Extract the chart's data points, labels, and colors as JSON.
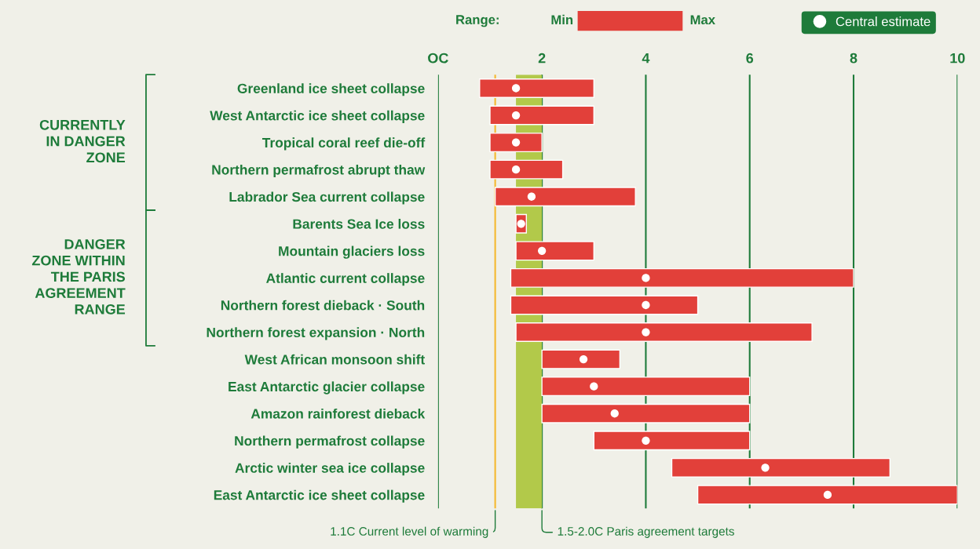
{
  "chart_data": {
    "type": "bar",
    "orientation": "horizontal",
    "categories": [
      "Greenland ice sheet collapse",
      "West Antarctic ice sheet collapse",
      "Tropical coral reef die-off",
      "Northern permafrost abrupt thaw",
      "Labrador Sea current collapse",
      "Barents Sea Ice loss",
      "Mountain glaciers loss",
      "Atlantic current collapse",
      "Northern forest dieback · South",
      "Northern forest expansion · North",
      "West African monsoon shift",
      "East Antarctic glacier collapse",
      "Amazon rainforest dieback",
      "Northern permafrost collapse",
      "Arctic winter sea ice collapse",
      "East Antarctic ice sheet collapse"
    ],
    "series": [
      {
        "color": "#e2403a",
        "base": [
          0.8,
          1.0,
          1.0,
          1.0,
          1.1,
          1.5,
          1.5,
          1.4,
          1.4,
          1.5,
          2.0,
          2.0,
          2.0,
          3.0,
          4.5,
          5.0
        ],
        "values": [
          2.2,
          2.0,
          1.0,
          1.4,
          2.7,
          0.2,
          1.5,
          6.6,
          3.6,
          5.7,
          1.5,
          4.0,
          4.0,
          3.0,
          4.2,
          5.0
        ]
      },
      {
        "type": "scatter",
        "name": "Central estimate",
        "color": "#ffffff",
        "marker": "circle",
        "values": [
          1.5,
          1.5,
          1.5,
          1.5,
          1.8,
          1.6,
          2.0,
          4.0,
          4.0,
          4.0,
          2.8,
          3.0,
          3.4,
          4.0,
          6.3,
          7.5
        ]
      }
    ],
    "xlim": [
      0,
      10
    ],
    "xticks": [
      {
        "value": 0,
        "label": "OC"
      },
      2,
      4,
      6,
      8,
      10
    ],
    "grid": "x",
    "legend": "top right",
    "ref_lines": [
      {
        "axis": "x",
        "value": 1.1,
        "label": "1.1C Current level of warming",
        "color": "#f5b82e"
      }
    ],
    "bands": [
      {
        "axis": "x",
        "from": 1.5,
        "to": 2.0,
        "label": "1.5-2.0C Paris agreement targets",
        "color": "#b2c94a"
      }
    ],
    "annotations": [
      "Range:",
      "Min",
      "Max",
      "CURRENTLY\nIN DANGER\nZONE",
      "DANGER\nZONE WITHIN\nTHE PARIS\nAGREEMENT\nRANGE"
    ]
  }
}
